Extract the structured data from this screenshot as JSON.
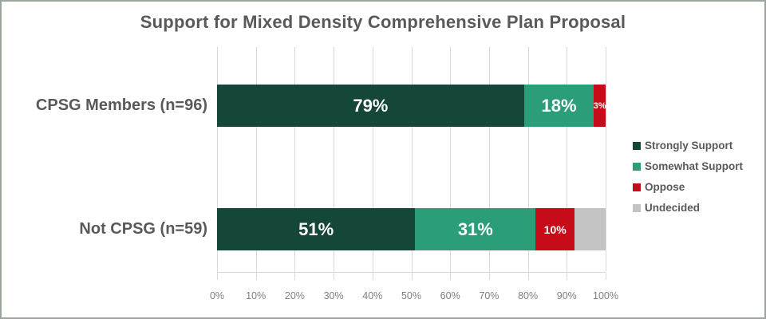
{
  "frame": {
    "background_color": "#ffffff",
    "border_color": "#9aa59e"
  },
  "chart_data": {
    "type": "bar",
    "orientation": "horizontal",
    "stacked": true,
    "title": "Support for Mixed Density Comprehensive Plan Proposal",
    "categories": [
      "CPSG Members (n=96)",
      "Not CPSG (n=59)"
    ],
    "series": [
      {
        "name": "Strongly Support",
        "color": "#15463a",
        "values": [
          79,
          51
        ]
      },
      {
        "name": "Somewhat Support",
        "color": "#2b9d79",
        "values": [
          18,
          31
        ]
      },
      {
        "name": "Oppose",
        "color": "#c50c18",
        "values": [
          3,
          10
        ]
      },
      {
        "name": "Undecided",
        "color": "#c3c3c3",
        "values": [
          0,
          8
        ]
      }
    ],
    "data_labels": [
      [
        "79%",
        "18%",
        "3%",
        ""
      ],
      [
        "51%",
        "31%",
        "10%",
        ""
      ]
    ],
    "x_ticks": [
      "0%",
      "10%",
      "20%",
      "30%",
      "40%",
      "50%",
      "60%",
      "70%",
      "80%",
      "90%",
      "100%"
    ],
    "xlim": [
      0,
      100
    ],
    "grid": "vertical",
    "gridline_color": "#d9d9d9",
    "legend_position": "right",
    "title_color": "#595959",
    "category_label_color": "#595959",
    "tick_label_color": "#7f7f7f",
    "data_label_color": "#ffffff"
  }
}
